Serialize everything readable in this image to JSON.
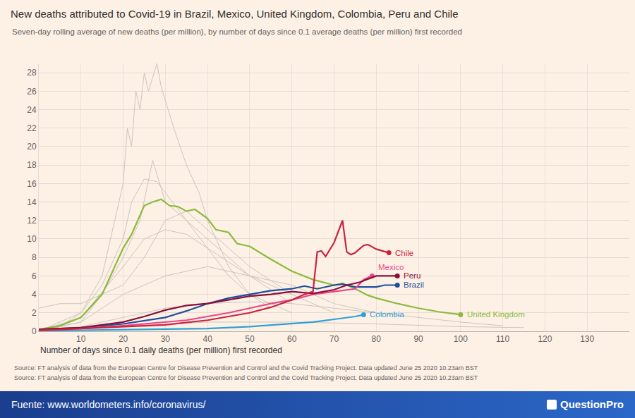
{
  "chart_data": {
    "type": "line",
    "title": "New deaths attributed to Covid-19 in Brazil, Mexico, United Kingdom, Colombia, Peru and Chile",
    "subtitle": "Seven-day rolling average of new deaths (per million), by number of days since 0.1 average deaths (per million) first recorded",
    "xlabel": "Number of days since 0.1 daily deaths (per million) first recorded",
    "notes": [
      "Source: FT analysis of data from the European Centre for Disease Prevention and Control and the Covid Tracking Project. Data updated June 25 2020 10.23am BST",
      "Source: FT analysis of data from the European Centre for Disease Prevention and Control and the Covid Tracking Project. Data updated June 25 2020 10.23am BST"
    ],
    "xlim": [
      0,
      140
    ],
    "xticks": [
      10,
      20,
      30,
      40,
      50,
      60,
      70,
      80,
      90,
      100,
      110,
      120,
      130
    ],
    "ylim": [
      0,
      29
    ],
    "yticks": [
      0,
      2,
      4,
      6,
      8,
      10,
      12,
      14,
      16,
      18,
      20,
      22,
      24,
      26,
      28
    ],
    "grid": true,
    "series": [
      {
        "color": "#cbc5be",
        "x": [
          0,
          5,
          10,
          15,
          18,
          20,
          21,
          22,
          23,
          24,
          25,
          26,
          27,
          28,
          29,
          30,
          32,
          35,
          38,
          40,
          45,
          50,
          55
        ],
        "values": [
          0,
          0.5,
          2,
          6,
          12,
          16,
          22,
          20,
          26,
          24,
          28,
          26,
          27.5,
          29,
          26.5,
          25,
          22,
          18,
          15,
          12,
          7,
          4,
          2.5
        ]
      },
      {
        "color": "#cbc5be",
        "x": [
          0,
          10,
          15,
          20,
          22,
          25,
          28,
          30,
          35,
          40,
          45,
          50,
          55,
          60
        ],
        "values": [
          0,
          2,
          5,
          10,
          14,
          16.5,
          16.2,
          15,
          12,
          9,
          6,
          4,
          3,
          2
        ]
      },
      {
        "color": "#cbc5be",
        "x": [
          0,
          10,
          15,
          20,
          24,
          27,
          30,
          35,
          40,
          45,
          50,
          60
        ],
        "values": [
          0,
          1,
          4,
          8,
          12,
          18.5,
          14,
          12,
          10,
          8,
          6,
          3
        ]
      },
      {
        "color": "#cbc5be",
        "x": [
          0,
          10,
          20,
          25,
          30,
          35,
          40,
          50,
          60,
          70
        ],
        "values": [
          0,
          1.5,
          7,
          10,
          11,
          10.5,
          9,
          6,
          4,
          2
        ]
      },
      {
        "color": "#cbc5be",
        "x": [
          0,
          10,
          20,
          30,
          40,
          50,
          60,
          70,
          80
        ],
        "values": [
          0,
          1,
          4,
          6,
          7,
          6,
          5,
          3,
          2
        ]
      },
      {
        "color": "#cbc5be",
        "x": [
          0,
          10,
          20,
          30,
          40,
          50,
          60,
          70,
          80,
          90,
          100,
          110
        ],
        "values": [
          0,
          0.5,
          1.5,
          2.5,
          3,
          3.2,
          3,
          2.5,
          2,
          1.5,
          1,
          0.6
        ]
      },
      {
        "color": "#cbc5be",
        "x": [
          0,
          20,
          40,
          60,
          80,
          100,
          115
        ],
        "values": [
          0,
          0.5,
          1,
          1,
          0.8,
          0.5,
          0.4
        ]
      },
      {
        "color": "#cbc5be",
        "x": [
          0,
          5,
          10,
          20,
          25,
          30,
          35,
          40,
          50,
          60
        ],
        "values": [
          2.5,
          3,
          3,
          5,
          8,
          12,
          13,
          11,
          7,
          4
        ]
      },
      {
        "name": "United Kingdom",
        "color": "#8cba3c",
        "x": [
          0,
          5,
          10,
          15,
          20,
          22,
          25,
          27,
          29,
          31,
          33,
          35,
          37,
          40,
          42,
          45,
          47,
          50,
          55,
          60,
          65,
          70,
          72,
          75,
          78,
          80,
          85,
          90,
          95,
          100
        ],
        "values": [
          0.2,
          0.6,
          1.5,
          4,
          9,
          10.5,
          13.6,
          14,
          14.3,
          13.6,
          13.5,
          13,
          13.2,
          12.2,
          11,
          10.7,
          9.5,
          9.2,
          7.8,
          6.5,
          5.6,
          5,
          5.2,
          4.6,
          3.9,
          3.6,
          3,
          2.5,
          2.1,
          1.8
        ]
      },
      {
        "name": "Colombia",
        "color": "#2fa0d6",
        "x": [
          0,
          10,
          20,
          30,
          40,
          50,
          60,
          65,
          70,
          75,
          77
        ],
        "values": [
          0.05,
          0.1,
          0.2,
          0.25,
          0.3,
          0.5,
          0.8,
          1,
          1.3,
          1.6,
          1.8
        ]
      },
      {
        "name": "Brazil",
        "color": "#1f4e9e",
        "x": [
          0,
          10,
          20,
          30,
          35,
          40,
          45,
          50,
          55,
          60,
          63,
          66,
          70,
          72,
          75,
          80,
          82,
          85
        ],
        "values": [
          0.2,
          0.4,
          0.8,
          1.5,
          2.2,
          3,
          3.6,
          4,
          4.4,
          4.6,
          4.9,
          4.6,
          5,
          5.1,
          4.8,
          4.8,
          5,
          5
        ]
      },
      {
        "name": "Mexico",
        "color": "#e8488a",
        "x": [
          0,
          10,
          20,
          30,
          35,
          40,
          45,
          50,
          55,
          60,
          65,
          70,
          75,
          77,
          79
        ],
        "values": [
          0.1,
          0.3,
          0.6,
          1,
          1.2,
          1.6,
          2,
          2.5,
          3,
          3.4,
          4,
          4.3,
          4.6,
          5.6,
          6
        ]
      },
      {
        "name": "Peru",
        "color": "#8b0e3a",
        "x": [
          0,
          10,
          15,
          20,
          25,
          30,
          35,
          40,
          45,
          50,
          55,
          60,
          65,
          70,
          73,
          76,
          80,
          85
        ],
        "values": [
          0.2,
          0.4,
          0.7,
          1,
          1.6,
          2.3,
          2.8,
          3,
          3.4,
          3.8,
          4,
          4.3,
          4.1,
          4.5,
          5,
          5.3,
          6,
          6
        ]
      },
      {
        "name": "Chile",
        "color": "#c8243e",
        "x": [
          0,
          10,
          20,
          30,
          40,
          45,
          50,
          55,
          60,
          63,
          65,
          66,
          67,
          68,
          69,
          70,
          72,
          73,
          74,
          75,
          77,
          78,
          80,
          82,
          83
        ],
        "values": [
          0.1,
          0.3,
          0.5,
          0.7,
          1.2,
          1.6,
          2,
          2.6,
          3.4,
          4,
          4.3,
          8.6,
          8.7,
          8.1,
          8.8,
          9.6,
          12,
          8.6,
          8.3,
          8.5,
          9.3,
          9.4,
          8.9,
          8.6,
          8.5
        ]
      }
    ]
  },
  "footer": {
    "source": "Fuente: www.worldometers.info/coronavirus/",
    "brand": "QuestionPro"
  }
}
